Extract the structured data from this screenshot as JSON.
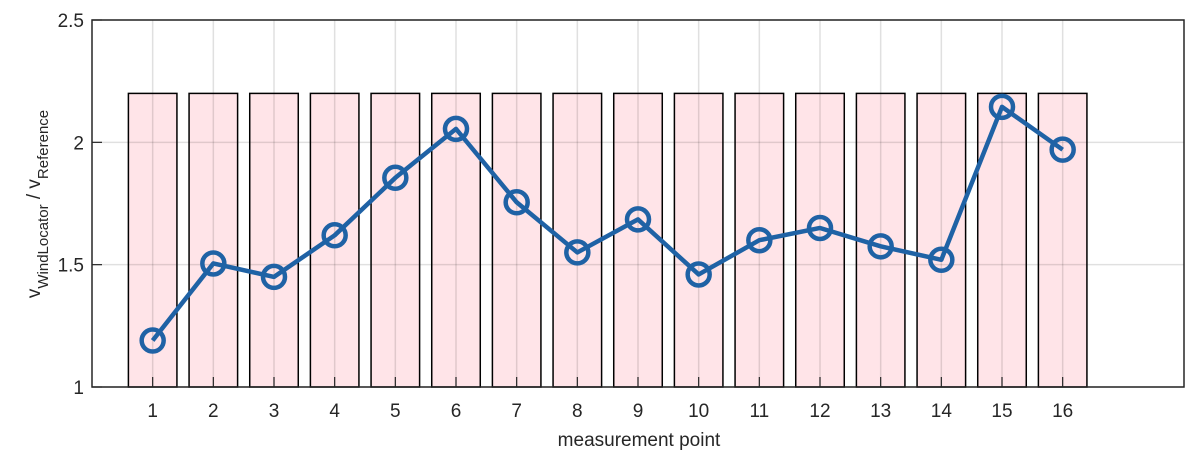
{
  "chart_data": {
    "type": "combo",
    "x_label": "measurement point",
    "y_label_parts": [
      "v",
      "WindLocator",
      " / v",
      "Reference"
    ],
    "x": [
      1,
      2,
      3,
      4,
      5,
      6,
      7,
      8,
      9,
      10,
      11,
      12,
      13,
      14,
      15,
      16
    ],
    "series": [
      {
        "type": "bar",
        "color": "#ffe4e8",
        "edgecolor": "#000000",
        "values": [
          2.2,
          2.2,
          2.2,
          2.2,
          2.2,
          2.2,
          2.2,
          2.2,
          2.2,
          2.2,
          2.2,
          2.2,
          2.2,
          2.2,
          2.2,
          2.2
        ]
      },
      {
        "type": "line",
        "color": "#1f62a5",
        "values": [
          1.19,
          1.505,
          1.45,
          1.62,
          1.855,
          2.055,
          1.755,
          1.55,
          1.685,
          1.46,
          1.6,
          1.65,
          1.575,
          1.52,
          2.145,
          1.97
        ]
      }
    ],
    "xlim": [
      0,
      18
    ],
    "xticks": [
      1,
      2,
      3,
      4,
      5,
      6,
      7,
      8,
      9,
      10,
      11,
      12,
      13,
      14,
      15,
      16
    ],
    "ylim": [
      1,
      2.5
    ],
    "yticks": [
      1,
      1.5,
      2,
      2.5
    ],
    "grid": true
  }
}
